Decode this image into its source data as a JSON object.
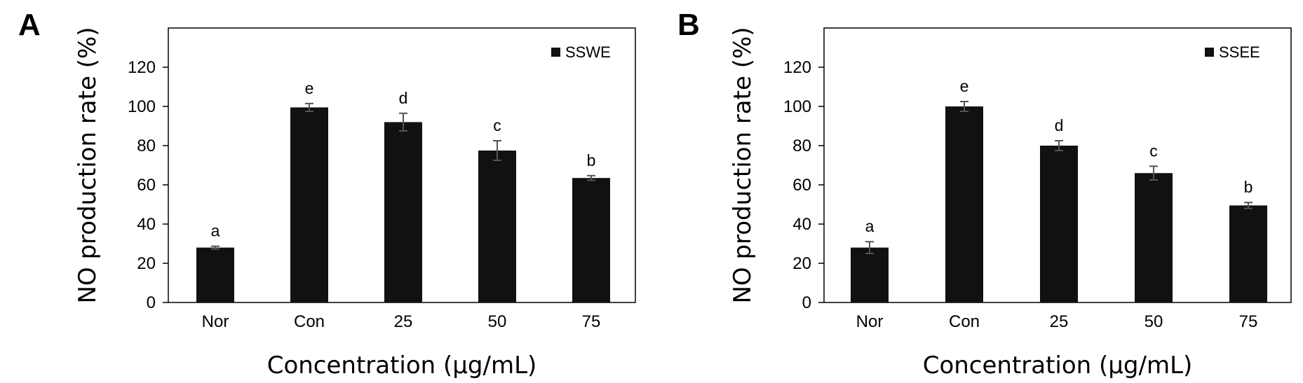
{
  "colors": {
    "bar": "#111111",
    "error_bar": "#555555",
    "axis": "#000000"
  },
  "chart_data": [
    {
      "type": "bar",
      "panel_label": "A",
      "legend": {
        "entries": [
          "SSWE"
        ],
        "placement": "top-right"
      },
      "ylabel": "NO production rate (%)",
      "xlabel": "Concentration (µg/mL)",
      "ylim": [
        0,
        140
      ],
      "yticks": [
        0,
        20,
        40,
        60,
        80,
        100,
        120
      ],
      "grid": false,
      "categories": [
        "Nor",
        "Con",
        "25",
        "50",
        "75"
      ],
      "values": [
        28,
        99.5,
        92,
        77.5,
        63.5
      ],
      "errors": [
        0.7,
        2,
        4.5,
        5,
        1.2
      ],
      "significance_letters": [
        "a",
        "e",
        "d",
        "c",
        "b"
      ]
    },
    {
      "type": "bar",
      "panel_label": "B",
      "legend": {
        "entries": [
          "SSEE"
        ],
        "placement": "top-right"
      },
      "ylabel": "NO production rate (%)",
      "xlabel": "Concentration (µg/mL)",
      "ylim": [
        0,
        140
      ],
      "yticks": [
        0,
        20,
        40,
        60,
        80,
        100,
        120
      ],
      "grid": false,
      "categories": [
        "Nor",
        "Con",
        "25",
        "50",
        "75"
      ],
      "values": [
        28,
        100,
        80,
        66,
        49.5
      ],
      "errors": [
        3,
        2.5,
        2.5,
        3.5,
        1.5
      ],
      "significance_letters": [
        "a",
        "e",
        "d",
        "c",
        "b"
      ]
    }
  ]
}
